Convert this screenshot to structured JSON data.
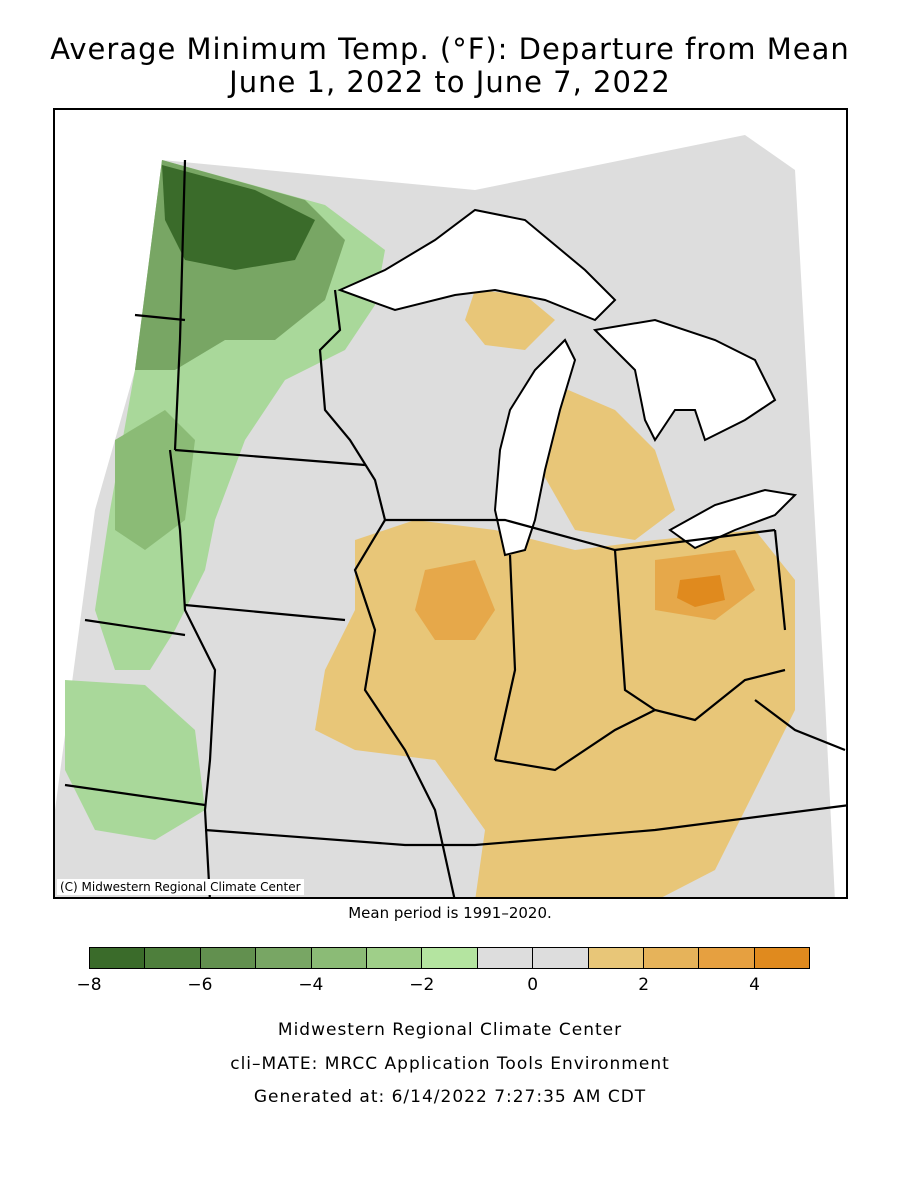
{
  "title": {
    "line1": "Average Minimum Temp. (°F): Departure from Mean",
    "line2": "June 1, 2022 to June 7, 2022"
  },
  "map": {
    "credit": "(C) Midwestern Regional Climate Center",
    "mean_note": "Mean period is 1991–2020.",
    "region_fills": {
      "dark_green": "#3a6b2a",
      "mid_green": "#6a9e58",
      "light_green": "#a9d89a",
      "neutral": "#dddddd",
      "light_orange": "#e8c678",
      "mid_orange": "#e6a84a",
      "dark_orange": "#e08a1e",
      "lake": "#ffffff"
    }
  },
  "legend": {
    "colors": [
      "#3a6b2a",
      "#4e7f3c",
      "#62904f",
      "#78a664",
      "#8bbb76",
      "#9fcf89",
      "#b4e4a0",
      "#dddddd",
      "#dddddd",
      "#e8c678",
      "#e6b35a",
      "#e6a040",
      "#e08a1e"
    ],
    "ticks": [
      "−8",
      "−6",
      "−4",
      "−2",
      "0",
      "2",
      "4"
    ]
  },
  "footer": {
    "line1": "Midwestern Regional Climate Center",
    "line2": "cli–MATE: MRCC Application Tools Environment",
    "line3": "Generated at: 6/14/2022 7:27:35 AM CDT"
  }
}
